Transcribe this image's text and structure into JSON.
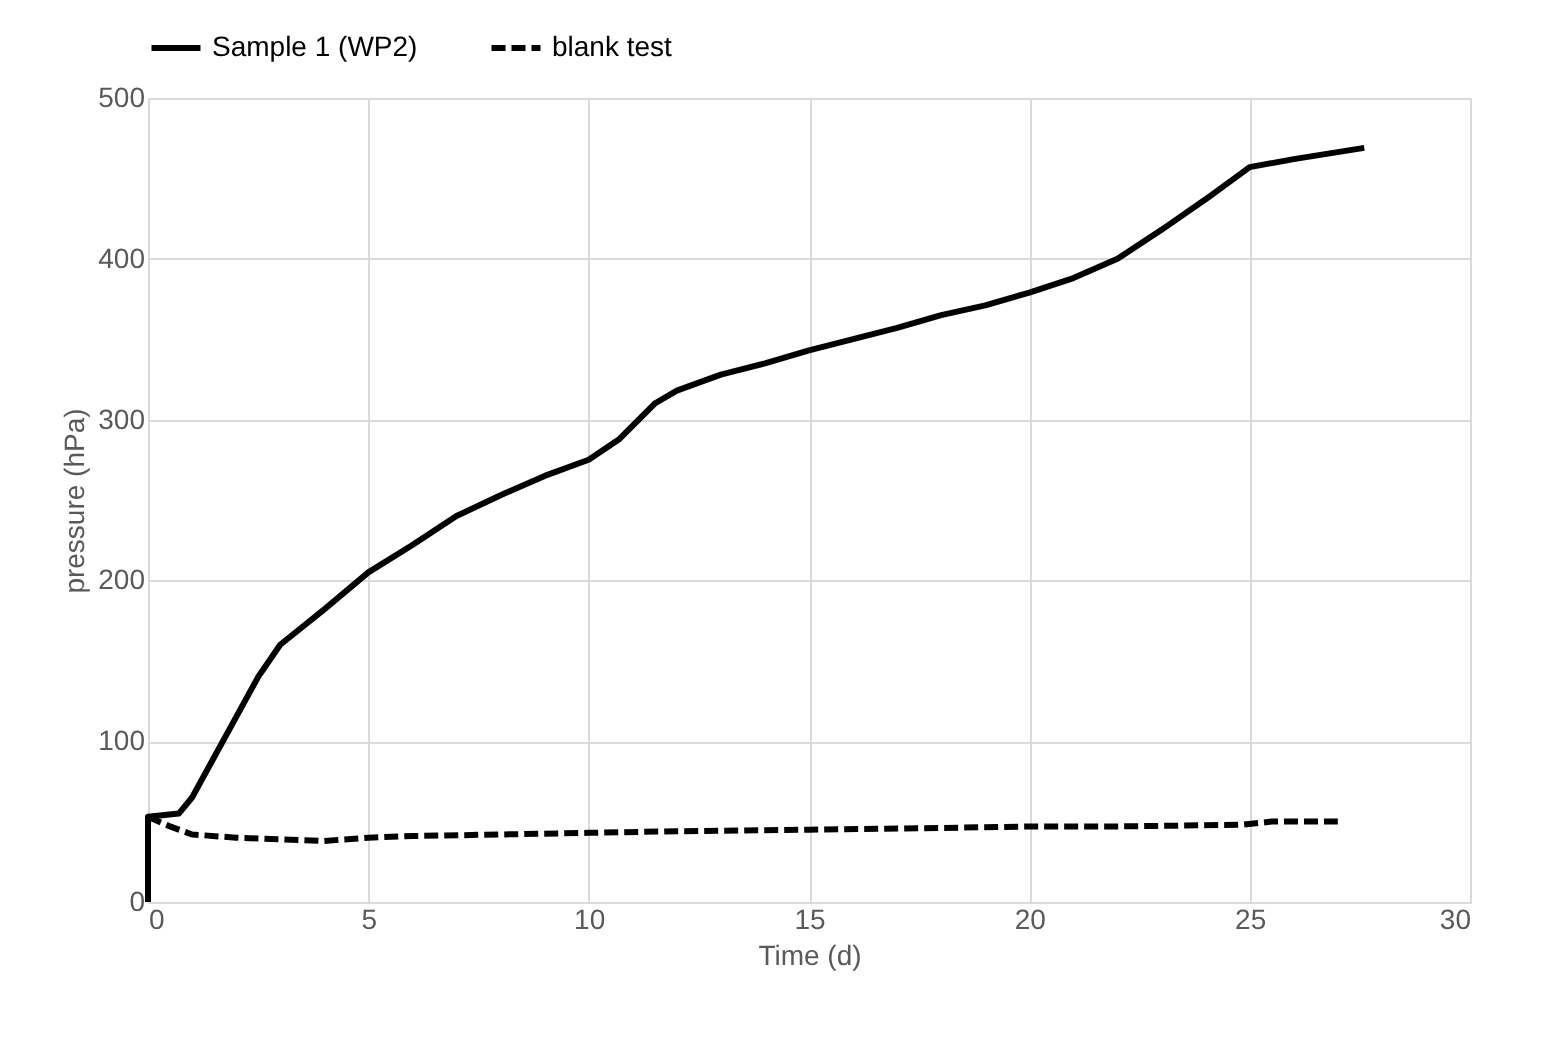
{
  "chart_data": {
    "type": "line",
    "xlabel": "Time (d)",
    "ylabel": "pressure (hPa)",
    "xlim": [
      0,
      30
    ],
    "xticks": [
      0,
      5,
      10,
      15,
      20,
      25,
      30
    ],
    "ylim": [
      0,
      500
    ],
    "yticks": [
      0,
      100,
      200,
      300,
      400,
      500
    ],
    "grid": true,
    "legend": "top",
    "marker": "none",
    "series": [
      {
        "name": "Sample 1 (WP2)",
        "color": "#000000",
        "line_style": "solid",
        "x": [
          0,
          0,
          0.7,
          1,
          1.5,
          2,
          2.5,
          3,
          4,
          5,
          6,
          7,
          8,
          9,
          10,
          10.7,
          11.5,
          12,
          13,
          14,
          15,
          16,
          17,
          18,
          19,
          20,
          21,
          22,
          23,
          24,
          24.8,
          25,
          26,
          27.6
        ],
        "values": [
          0,
          53,
          55,
          65,
          90,
          115,
          140,
          160,
          182,
          205,
          222,
          240,
          253,
          265,
          275,
          288,
          310,
          318,
          328,
          335,
          343,
          350,
          357,
          365,
          371,
          379,
          388,
          400,
          418,
          437,
          453,
          457,
          462,
          469
        ]
      },
      {
        "name": "blank test",
        "color": "#000000",
        "line_style": "dashed",
        "x": [
          0,
          0.5,
          1,
          2,
          3,
          4,
          5,
          6,
          8,
          10,
          12,
          15,
          18,
          20,
          22,
          24.8,
          25.5,
          27
        ],
        "values": [
          53,
          47,
          42,
          40,
          39,
          38,
          40,
          41,
          42,
          43,
          44,
          45,
          46,
          47,
          47,
          48,
          50,
          50
        ]
      }
    ]
  }
}
